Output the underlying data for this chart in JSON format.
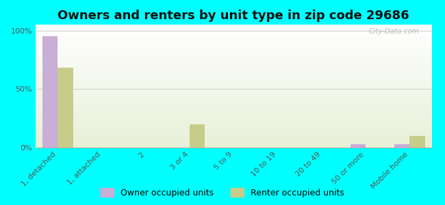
{
  "title": "Owners and renters by unit type in zip code 29686",
  "categories": [
    "1, detached",
    "1, attached",
    "2",
    "3 or 4",
    "5 to 9",
    "10 to 19",
    "20 to 49",
    "50 or more",
    "Mobile home"
  ],
  "owner_values": [
    95,
    0,
    0,
    0,
    0,
    0,
    0,
    3,
    3
  ],
  "renter_values": [
    68,
    0,
    0,
    20,
    0,
    0,
    0,
    0,
    10
  ],
  "owner_color": "#c9aed6",
  "renter_color": "#c8cc8a",
  "background_color": "#00ffff",
  "ylabel_ticks": [
    "0%",
    "50%",
    "100%"
  ],
  "ytick_values": [
    0,
    50,
    100
  ],
  "ylim": [
    0,
    105
  ],
  "bar_width": 0.35,
  "title_fontsize": 13,
  "tick_fontsize": 8,
  "legend_fontsize": 9,
  "watermark": "City-Data.com",
  "grad_top": "#ffffff",
  "grad_bottom": "#e8f0d8"
}
